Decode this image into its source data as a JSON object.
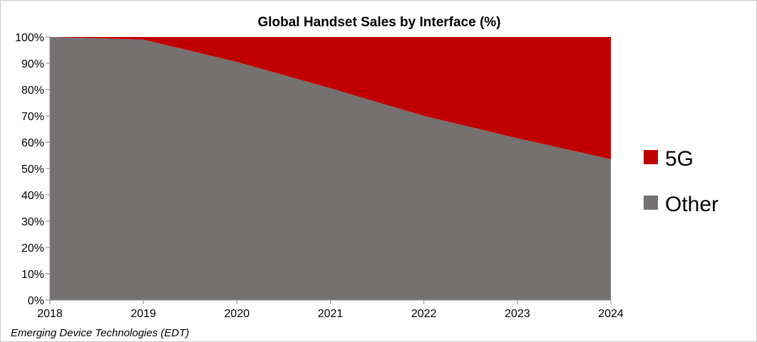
{
  "chart_data": {
    "type": "area",
    "stacked": true,
    "title": "Global Handset Sales by Interface (%)",
    "x": [
      "2018",
      "2019",
      "2020",
      "2021",
      "2022",
      "2023",
      "2024"
    ],
    "series": [
      {
        "name": "Other",
        "values": [
          100,
          99,
          90.5,
          80.5,
          70,
          61.5,
          53.5
        ],
        "color": "#767171"
      },
      {
        "name": "5G",
        "values": [
          0,
          1,
          9.5,
          19.5,
          30,
          38.5,
          46.5
        ],
        "color": "#c00000"
      }
    ],
    "yticks": [
      "0%",
      "10%",
      "20%",
      "30%",
      "40%",
      "50%",
      "60%",
      "70%",
      "80%",
      "90%",
      "100%"
    ],
    "ylim": [
      0,
      100
    ],
    "grid": false,
    "legend": "right",
    "legend_order": [
      "5G",
      "Other"
    ]
  },
  "source": "Emerging Device Technologies (EDT)"
}
